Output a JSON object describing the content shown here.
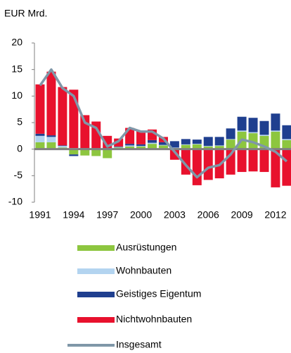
{
  "chart_data": {
    "type": "bar",
    "stacked": true,
    "y_label": "EUR Mrd.",
    "categories": [
      "1991",
      null,
      null,
      "1994",
      null,
      null,
      "1997",
      null,
      null,
      "2000",
      null,
      null,
      "2003",
      null,
      null,
      "2006",
      null,
      null,
      "2009",
      null,
      null,
      "2012",
      null
    ],
    "ylim": [
      -10,
      20
    ],
    "yticks": [
      -10,
      -5,
      0,
      5,
      10,
      15,
      20
    ],
    "series": [
      {
        "name": "Ausrüstungen",
        "color": "#8dc63f",
        "values": [
          1.3,
          1.3,
          0.3,
          -1.0,
          -1.2,
          -1.3,
          -1.7,
          0.3,
          0.5,
          0.5,
          1.0,
          0.7,
          0.2,
          0.8,
          0.9,
          0.5,
          0.6,
          1.8,
          3.3,
          3.0,
          2.5,
          3.3,
          1.7
        ]
      },
      {
        "name": "Wohnbauten",
        "color": "#b3d4f0",
        "values": [
          1.2,
          1.0,
          0.3,
          0.2,
          0.1,
          0.1,
          0.1,
          0.1,
          0.2,
          0.1,
          0.2,
          0.1,
          0.1,
          0.1,
          0.1,
          0.1,
          0.1,
          0.1,
          0.2,
          0.2,
          0.2,
          0.2,
          0.2
        ]
      },
      {
        "name": "Geistiges Eigentum",
        "color": "#1f3f8f",
        "values": [
          0.4,
          0.3,
          0.1,
          -0.3,
          0.1,
          0.1,
          0.1,
          0.1,
          0.3,
          0.3,
          0.5,
          0.5,
          1.2,
          1.0,
          0.8,
          1.7,
          1.6,
          2.0,
          2.6,
          2.7,
          2.6,
          3.2,
          2.6
        ]
      },
      {
        "name": "Nichtwohnbauten",
        "color": "#e8112d",
        "values": [
          9.3,
          12.0,
          11.0,
          11.0,
          6.2,
          5.0,
          2.3,
          1.5,
          3.0,
          2.6,
          2.0,
          1.0,
          -2.0,
          -4.8,
          -6.8,
          -5.8,
          -5.5,
          -4.8,
          -4.3,
          -4.2,
          -4.3,
          -7.2,
          -6.9
        ]
      },
      {
        "name": "Insgesamt",
        "type": "line",
        "color": "#7f97a8",
        "values": [
          12.0,
          15.0,
          11.5,
          10.0,
          5.0,
          4.0,
          0.5,
          1.5,
          4.0,
          3.3,
          3.3,
          2.0,
          -0.5,
          -3.0,
          -5.3,
          -3.5,
          -3.0,
          -1.0,
          1.8,
          1.3,
          0.5,
          -0.5,
          -2.3
        ]
      }
    ]
  }
}
